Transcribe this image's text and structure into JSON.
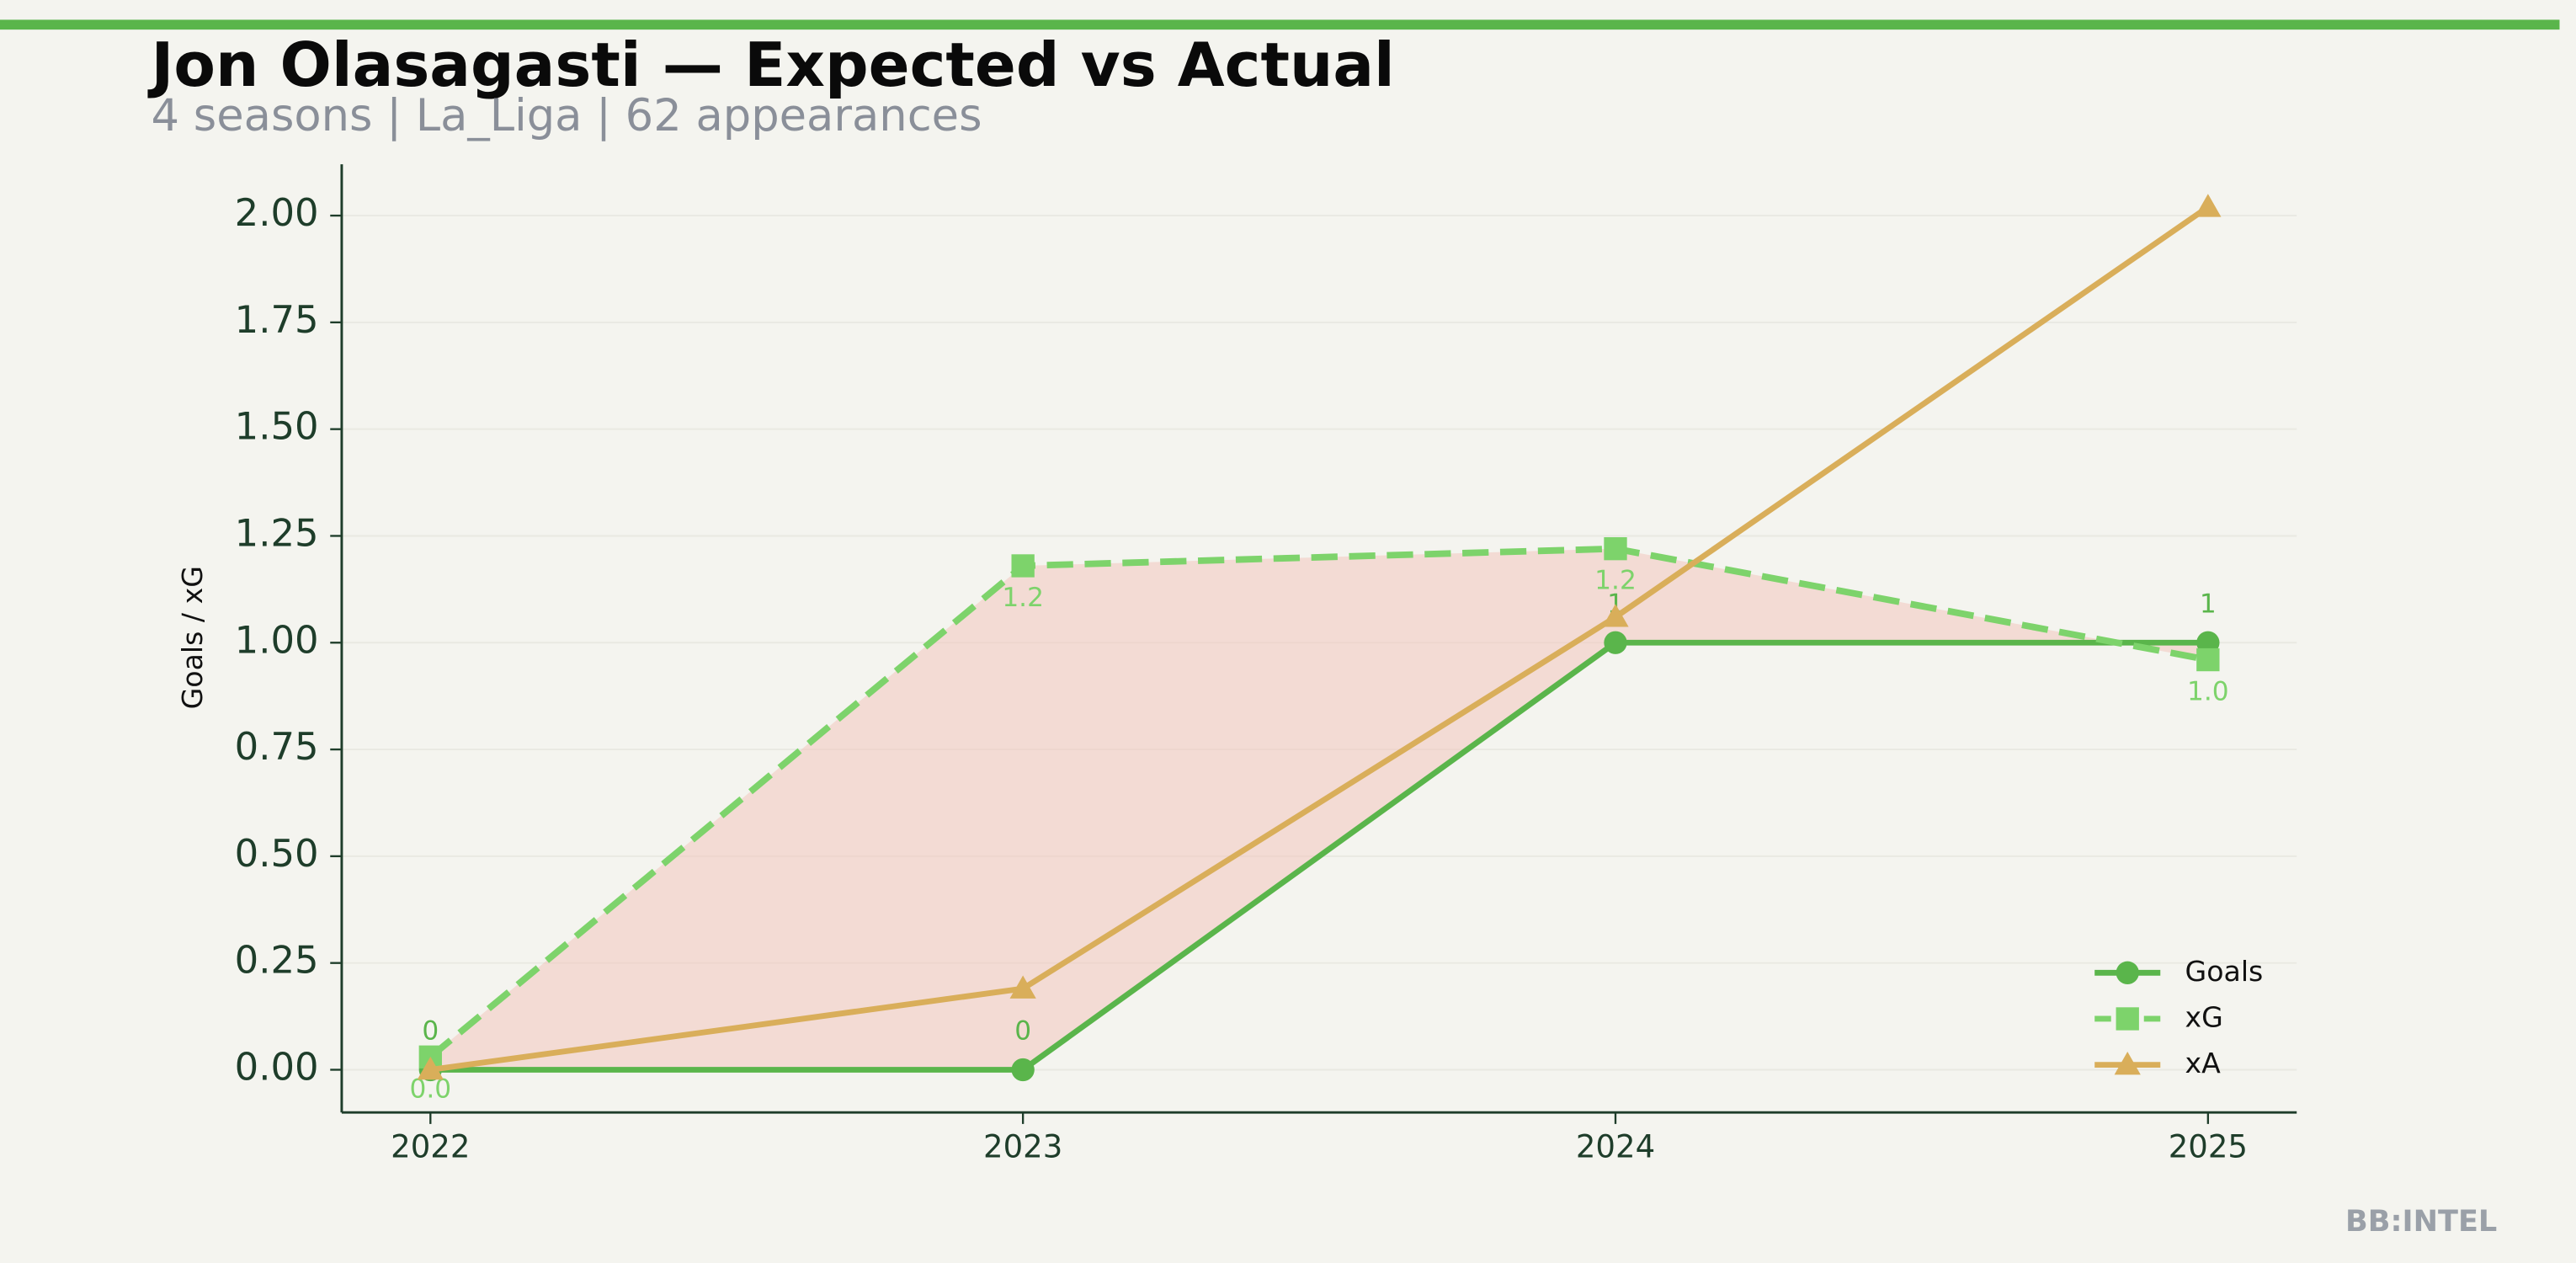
{
  "chart_data": {
    "type": "line",
    "title": "Jon Olasagasti — Expected vs Actual",
    "subtitle": "4 seasons | La_Liga | 62 appearances",
    "y_label": "Goals / xG",
    "watermark": "BB:INTEL",
    "categories": [
      "2022",
      "2023",
      "2024",
      "2025"
    ],
    "series": [
      {
        "name": "Goals",
        "color": "#5ab54b",
        "marker": "circle",
        "dashed": false,
        "labels": "above",
        "values": [
          0,
          0,
          1,
          1
        ]
      },
      {
        "name": "xG",
        "color": "#7dd36b",
        "marker": "square",
        "dashed": true,
        "labels": "below",
        "values": [
          0.03,
          1.18,
          1.22,
          0.96
        ],
        "value_labels": [
          "0.0",
          "1.2",
          "1.2",
          "1.0"
        ]
      },
      {
        "name": "xA",
        "color": "#d9ae5a",
        "marker": "triangle",
        "dashed": false,
        "values": [
          0,
          0.19,
          1.06,
          2.02
        ]
      }
    ],
    "fill_between": {
      "color": "#f2c6be"
    },
    "ylim": [
      -0.1,
      2.12
    ],
    "yticks": [
      {
        "value": 0,
        "label": "0.00"
      },
      {
        "value": 0.25,
        "label": "0.25"
      },
      {
        "value": 0.5,
        "label": "0.50"
      },
      {
        "value": 0.75,
        "label": "0.75"
      },
      {
        "value": 1,
        "label": "1.00"
      },
      {
        "value": 1.25,
        "label": "1.25"
      },
      {
        "value": 1.5,
        "label": "1.50"
      },
      {
        "value": 1.75,
        "label": "1.75"
      },
      {
        "value": 2,
        "label": "2.00"
      }
    ],
    "grid": true,
    "legend": "lower right"
  }
}
